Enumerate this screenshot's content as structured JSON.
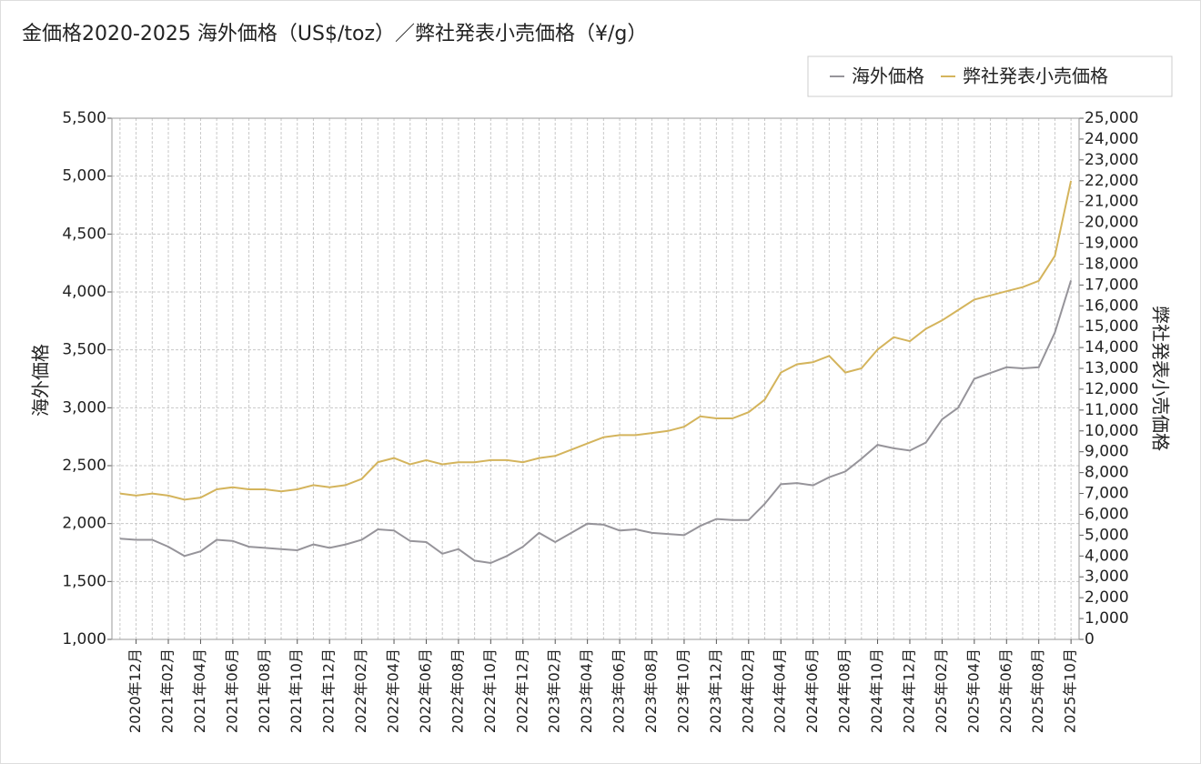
{
  "chart_data": {
    "type": "line",
    "title": "金価格2020-2025 海外価格（US$/toz）／弊社発表小売価格（¥/g）",
    "y_label": "海外価格",
    "y2_label": "弊社発表小売価格",
    "categories": [
      null,
      "2020年12月",
      null,
      "2021年02月",
      null,
      "2021年04月",
      null,
      "2021年06月",
      null,
      "2021年08月",
      null,
      "2021年10月",
      null,
      "2021年12月",
      null,
      "2022年02月",
      null,
      "2022年04月",
      null,
      "2022年06月",
      null,
      "2022年08月",
      null,
      "2022年10月",
      null,
      "2022年12月",
      null,
      "2023年02月",
      null,
      "2023年04月",
      null,
      "2023年06月",
      null,
      "2023年08月",
      null,
      "2023年10月",
      null,
      "2023年12月",
      null,
      "2024年02月",
      null,
      "2024年04月",
      null,
      "2024年06月",
      null,
      "2024年08月",
      null,
      "2024年10月",
      null,
      "2024年12月",
      null,
      "2025年02月",
      null,
      "2025年04月",
      null,
      "2025年06月",
      null,
      "2025年08月",
      null,
      "2025年10月"
    ],
    "series": [
      {
        "name": "海外価格",
        "color": "#96949a",
        "values": [
          1870,
          1860,
          1860,
          1800,
          1720,
          1760,
          1860,
          1850,
          1800,
          1790,
          1780,
          1770,
          1820,
          1790,
          1820,
          1860,
          1950,
          1940,
          1850,
          1840,
          1740,
          1780,
          1680,
          1660,
          1720,
          1800,
          1920,
          1840,
          1920,
          2000,
          1990,
          1940,
          1950,
          1920,
          1910,
          1900,
          1980,
          2040,
          2030,
          2030,
          2170,
          2340,
          2350,
          2330,
          2400,
          2450,
          2560,
          2680,
          2650,
          2630,
          2700,
          2900,
          3000,
          3250,
          3300,
          3350,
          3340,
          3350,
          3650,
          4100
        ]
      },
      {
        "name": "弊社発表小売価格",
        "color": "#d4b45c",
        "axis": "y2",
        "values": [
          7000,
          6900,
          7000,
          6900,
          6700,
          6800,
          7200,
          7300,
          7200,
          7200,
          7100,
          7200,
          7400,
          7300,
          7400,
          7700,
          8500,
          8700,
          8400,
          8600,
          8400,
          8500,
          8500,
          8600,
          8600,
          8500,
          8700,
          8800,
          9100,
          9400,
          9700,
          9800,
          9800,
          9900,
          10000,
          10200,
          10700,
          10600,
          10600,
          10900,
          11500,
          12800,
          13200,
          13300,
          13600,
          12800,
          13000,
          13900,
          14500,
          14300,
          14900,
          15300,
          15800,
          16300,
          16500,
          16700,
          16900,
          17200,
          18400,
          22000
        ]
      }
    ],
    "ylim": [
      1000,
      5500
    ],
    "yticks": [
      {
        "value": 1000,
        "label": "1,000"
      },
      {
        "value": 1500,
        "label": "1,500"
      },
      {
        "value": 2000,
        "label": "2,000"
      },
      {
        "value": 2500,
        "label": "2,500"
      },
      {
        "value": 3000,
        "label": "3,000"
      },
      {
        "value": 3500,
        "label": "3,500"
      },
      {
        "value": 4000,
        "label": "4,000"
      },
      {
        "value": 4500,
        "label": "4,500"
      },
      {
        "value": 5000,
        "label": "5,000"
      },
      {
        "value": 5500,
        "label": "5,500"
      }
    ],
    "y2lim": [
      0,
      25000
    ],
    "y2ticks": [
      0,
      {
        "value": 1000,
        "label": "1,000"
      },
      {
        "value": 2000,
        "label": "2,000"
      },
      {
        "value": 3000,
        "label": "3,000"
      },
      {
        "value": 4000,
        "label": "4,000"
      },
      {
        "value": 5000,
        "label": "5,000"
      },
      {
        "value": 6000,
        "label": "6,000"
      },
      {
        "value": 7000,
        "label": "7,000"
      },
      {
        "value": 8000,
        "label": "8,000"
      },
      {
        "value": 9000,
        "label": "9,000"
      },
      {
        "value": 10000,
        "label": "10,000"
      },
      {
        "value": 11000,
        "label": "11,000"
      },
      {
        "value": 12000,
        "label": "12,000"
      },
      {
        "value": 13000,
        "label": "13,000"
      },
      {
        "value": 14000,
        "label": "14,000"
      },
      {
        "value": 15000,
        "label": "15,000"
      },
      {
        "value": 16000,
        "label": "16,000"
      },
      {
        "value": 17000,
        "label": "17,000"
      },
      {
        "value": 18000,
        "label": "18,000"
      },
      {
        "value": 19000,
        "label": "19,000"
      },
      {
        "value": 20000,
        "label": "20,000"
      },
      {
        "value": 21000,
        "label": "21,000"
      },
      {
        "value": 22000,
        "label": "22,000"
      },
      {
        "value": 23000,
        "label": "23,000"
      },
      {
        "value": 24000,
        "label": "24,000"
      },
      {
        "value": 25000,
        "label": "25,000"
      }
    ],
    "grid": true,
    "legend": "top-right"
  }
}
